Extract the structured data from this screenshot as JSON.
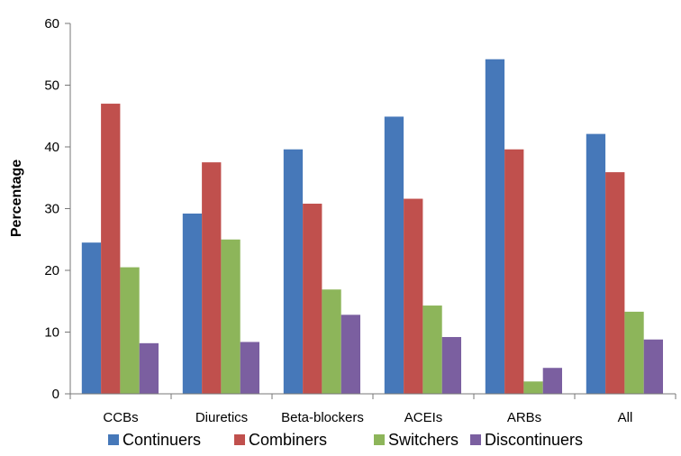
{
  "chart_data": {
    "type": "bar",
    "title": "",
    "xlabel": "",
    "ylabel": "Percentage",
    "ylim": [
      0,
      60
    ],
    "yticks": [
      0,
      10,
      20,
      30,
      40,
      50,
      60
    ],
    "grid": false,
    "legend": "bottom",
    "categories": [
      "CCBs",
      "Diuretics",
      "Beta-blockers",
      "ACEIs",
      "ARBs",
      "All"
    ],
    "series": [
      {
        "name": "Continuers",
        "color": "#4678b9",
        "values": [
          24.5,
          29.2,
          39.6,
          44.9,
          54.2,
          42.1
        ]
      },
      {
        "name": "Combiners",
        "color": "#c0504d",
        "values": [
          47.0,
          37.5,
          30.8,
          31.6,
          39.6,
          35.9
        ]
      },
      {
        "name": "Switchers",
        "color": "#8db55a",
        "values": [
          20.5,
          25.0,
          16.9,
          14.3,
          2.0,
          13.3
        ]
      },
      {
        "name": "Discontinuers",
        "color": "#7b5fa0",
        "values": [
          8.2,
          8.4,
          12.8,
          9.2,
          4.2,
          8.8
        ]
      }
    ]
  }
}
